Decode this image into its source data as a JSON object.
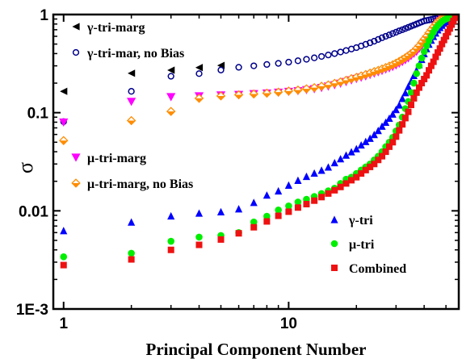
{
  "chart_data": {
    "type": "scatter",
    "xscale": "log",
    "yscale": "log",
    "xlim": [
      0.9,
      57
    ],
    "ylim": [
      0.001,
      1
    ],
    "xlabel": "Principal Component Number",
    "ylabel": "σ",
    "x_ticks": [
      {
        "value": 1,
        "label": "1"
      },
      {
        "value": 10,
        "label": "10"
      }
    ],
    "y_ticks": [
      {
        "value": 1,
        "label": "1"
      },
      {
        "value": 0.1,
        "label": "0.1"
      },
      {
        "value": 0.01,
        "label": "0.01"
      },
      {
        "value": 0.001,
        "label": "1E-3"
      }
    ],
    "legend_top": "top-left",
    "legend_bottom": "bottom-right",
    "series": [
      {
        "name": "γ-tri-marg",
        "marker": "triangle-left",
        "color": "#000000",
        "filled": true,
        "legend": "top",
        "x": [
          1,
          2,
          3,
          4,
          5
        ],
        "y": [
          0.165,
          0.252,
          0.271,
          0.288,
          0.303
        ]
      },
      {
        "name": "γ-tri-mar, no Bias",
        "marker": "circle",
        "color": "#00008b",
        "filled": false,
        "legend": "top",
        "x": [
          1,
          2,
          3,
          4,
          5,
          6,
          7,
          8,
          9,
          10,
          11,
          12,
          13,
          14,
          15,
          16,
          17,
          18,
          19,
          20,
          21,
          22,
          23,
          24,
          25,
          26,
          27,
          28,
          29,
          30,
          31,
          32,
          33,
          34,
          35,
          36,
          37,
          38,
          39,
          40,
          41,
          42,
          43,
          44,
          45,
          46,
          47,
          48,
          49,
          50,
          51,
          52,
          53,
          54,
          55,
          56
        ],
        "y": [
          0.081,
          0.165,
          0.235,
          0.25,
          0.272,
          0.29,
          0.3,
          0.31,
          0.318,
          0.327,
          0.338,
          0.35,
          0.362,
          0.374,
          0.387,
          0.4,
          0.415,
          0.43,
          0.445,
          0.46,
          0.478,
          0.497,
          0.515,
          0.535,
          0.557,
          0.58,
          0.6,
          0.62,
          0.64,
          0.66,
          0.682,
          0.7,
          0.72,
          0.74,
          0.76,
          0.78,
          0.8,
          0.82,
          0.84,
          0.86,
          0.87,
          0.88,
          0.89,
          0.9,
          0.91,
          0.92,
          0.93,
          0.94,
          0.95,
          0.955,
          0.96,
          0.965,
          0.97,
          0.975,
          0.98,
          0.985
        ]
      },
      {
        "name": "μ-tri-marg",
        "marker": "triangle-down",
        "color": "#ff00ff",
        "filled": true,
        "legend": "top",
        "x": [
          1,
          2,
          3,
          4,
          5,
          6,
          7,
          8,
          9,
          10,
          11,
          12,
          13,
          14,
          15,
          16,
          17,
          18,
          19,
          20,
          21,
          22,
          23,
          24,
          25,
          26,
          27,
          28,
          29,
          30,
          31,
          32,
          33,
          34,
          35,
          36,
          37,
          38,
          39,
          40,
          41,
          42,
          43,
          44,
          45,
          46,
          47,
          48,
          49,
          50,
          51,
          52,
          53,
          54,
          55,
          56
        ],
        "y": [
          0.08,
          0.13,
          0.145,
          0.148,
          0.151,
          0.153,
          0.156,
          0.158,
          0.161,
          0.164,
          0.167,
          0.171,
          0.175,
          0.18,
          0.186,
          0.192,
          0.199,
          0.207,
          0.215,
          0.222,
          0.229,
          0.236,
          0.244,
          0.252,
          0.26,
          0.268,
          0.277,
          0.285,
          0.294,
          0.305,
          0.318,
          0.33,
          0.345,
          0.36,
          0.38,
          0.4,
          0.42,
          0.45,
          0.48,
          0.52,
          0.56,
          0.6,
          0.65,
          0.7,
          0.76,
          0.82,
          0.86,
          0.9,
          0.92,
          0.94,
          0.95,
          0.96,
          0.97,
          0.975,
          0.98,
          0.985
        ]
      },
      {
        "name": "μ-tri-marg, no Bias",
        "marker": "diamond-half",
        "color": "#ff8c00",
        "filled": false,
        "legend": "top",
        "x": [
          1,
          2,
          3,
          4,
          5,
          6,
          7,
          8,
          9,
          10,
          11,
          12,
          13,
          14,
          15,
          16,
          17,
          18,
          19,
          20,
          21,
          22,
          23,
          24,
          25,
          26,
          27,
          28,
          29,
          30,
          31,
          32,
          33,
          34,
          35,
          36,
          37,
          38,
          39,
          40,
          41,
          42,
          43,
          44,
          45,
          46,
          47,
          48,
          49,
          50,
          51,
          52,
          53,
          54,
          55,
          56
        ],
        "y": [
          0.052,
          0.083,
          0.103,
          0.14,
          0.148,
          0.152,
          0.155,
          0.158,
          0.162,
          0.166,
          0.17,
          0.175,
          0.18,
          0.186,
          0.192,
          0.199,
          0.206,
          0.214,
          0.222,
          0.229,
          0.237,
          0.245,
          0.253,
          0.262,
          0.27,
          0.279,
          0.288,
          0.298,
          0.308,
          0.32,
          0.333,
          0.348,
          0.363,
          0.38,
          0.4,
          0.42,
          0.45,
          0.48,
          0.52,
          0.56,
          0.6,
          0.65,
          0.7,
          0.75,
          0.8,
          0.85,
          0.88,
          0.91,
          0.93,
          0.95,
          0.96,
          0.97,
          0.975,
          0.98,
          0.985,
          0.99
        ]
      },
      {
        "name": "γ-tri",
        "marker": "triangle-up",
        "color": "#0000ff",
        "filled": true,
        "legend": "bottom",
        "x": [
          1,
          2,
          3,
          4,
          5,
          6,
          7,
          8,
          9,
          10,
          11,
          12,
          13,
          14,
          15,
          16,
          17,
          18,
          19,
          20,
          21,
          22,
          23,
          24,
          25,
          26,
          27,
          28,
          29,
          30,
          31,
          32,
          33,
          34,
          35,
          36,
          37,
          38,
          39,
          40,
          41,
          42,
          43,
          44,
          45,
          46,
          47,
          48,
          49,
          50,
          51,
          52,
          53,
          54,
          55,
          56
        ],
        "y": [
          0.0063,
          0.0077,
          0.0089,
          0.0095,
          0.0098,
          0.0105,
          0.0122,
          0.0145,
          0.016,
          0.0183,
          0.0205,
          0.0225,
          0.0243,
          0.026,
          0.028,
          0.031,
          0.034,
          0.037,
          0.04,
          0.043,
          0.047,
          0.051,
          0.055,
          0.06,
          0.066,
          0.073,
          0.08,
          0.088,
          0.097,
          0.108,
          0.12,
          0.14,
          0.16,
          0.185,
          0.21,
          0.24,
          0.27,
          0.31,
          0.35,
          0.4,
          0.45,
          0.5,
          0.55,
          0.6,
          0.65,
          0.7,
          0.74,
          0.78,
          0.82,
          0.85,
          0.88,
          0.9,
          0.92,
          0.94,
          0.96,
          0.98
        ]
      },
      {
        "name": "μ-tri",
        "marker": "circle",
        "color": "#00ee00",
        "filled": true,
        "legend": "bottom",
        "x": [
          1,
          2,
          3,
          4,
          5,
          6,
          7,
          8,
          9,
          10,
          11,
          12,
          13,
          14,
          15,
          16,
          17,
          18,
          19,
          20,
          21,
          22,
          23,
          24,
          25,
          26,
          27,
          28,
          29,
          30,
          31,
          32,
          33,
          34,
          35,
          36,
          37,
          38,
          39,
          40,
          41,
          42,
          43,
          44,
          45,
          46,
          47,
          48,
          49,
          50,
          51,
          52,
          53,
          54,
          55,
          56
        ],
        "y": [
          0.0034,
          0.0037,
          0.0049,
          0.0054,
          0.0056,
          0.006,
          0.0077,
          0.0088,
          0.0102,
          0.0112,
          0.0123,
          0.0131,
          0.014,
          0.015,
          0.016,
          0.017,
          0.019,
          0.021,
          0.022,
          0.024,
          0.026,
          0.028,
          0.03,
          0.033,
          0.036,
          0.04,
          0.045,
          0.05,
          0.056,
          0.065,
          0.075,
          0.09,
          0.11,
          0.13,
          0.16,
          0.2,
          0.25,
          0.3,
          0.36,
          0.42,
          0.48,
          0.54,
          0.6,
          0.66,
          0.72,
          0.77,
          0.81,
          0.85,
          0.88,
          0.9,
          0.92,
          0.94,
          0.95,
          0.96,
          0.97,
          0.98
        ]
      },
      {
        "name": "Combined",
        "marker": "square",
        "color": "#ee1111",
        "filled": true,
        "legend": "bottom",
        "x": [
          1,
          2,
          3,
          4,
          5,
          6,
          7,
          8,
          9,
          10,
          11,
          12,
          13,
          14,
          15,
          16,
          17,
          18,
          19,
          20,
          21,
          22,
          23,
          24,
          25,
          26,
          27,
          28,
          29,
          30,
          31,
          32,
          33,
          34,
          35,
          36,
          37,
          38,
          39,
          40,
          41,
          42,
          43,
          44,
          45,
          46,
          47,
          48,
          49,
          50,
          51,
          52,
          53,
          54,
          55,
          56
        ],
        "y": [
          0.0028,
          0.0032,
          0.004,
          0.0045,
          0.0051,
          0.0059,
          0.0068,
          0.0078,
          0.0089,
          0.0098,
          0.0108,
          0.0117,
          0.0127,
          0.0138,
          0.015,
          0.0162,
          0.0175,
          0.019,
          0.0205,
          0.022,
          0.024,
          0.026,
          0.028,
          0.03,
          0.033,
          0.036,
          0.04,
          0.045,
          0.05,
          0.057,
          0.066,
          0.076,
          0.088,
          0.102,
          0.12,
          0.14,
          0.16,
          0.18,
          0.2,
          0.22,
          0.24,
          0.27,
          0.3,
          0.33,
          0.37,
          0.41,
          0.45,
          0.5,
          0.55,
          0.6,
          0.66,
          0.72,
          0.79,
          0.86,
          0.93,
          1.0
        ]
      }
    ]
  }
}
